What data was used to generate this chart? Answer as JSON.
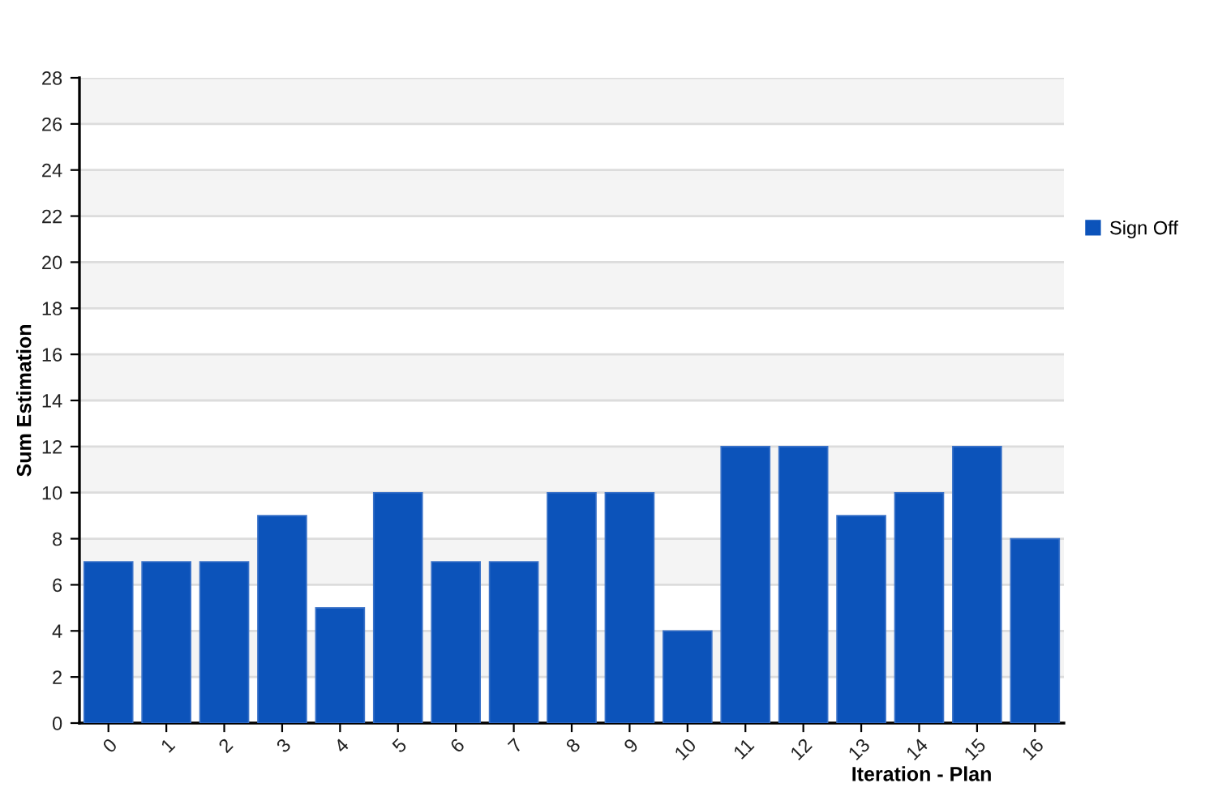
{
  "chart_data": {
    "type": "bar",
    "categories": [
      "0",
      "1",
      "2",
      "3",
      "4",
      "5",
      "6",
      "7",
      "8",
      "9",
      "10",
      "11",
      "12",
      "13",
      "14",
      "15",
      "16"
    ],
    "series": [
      {
        "name": "Sign Off",
        "color": "#0c53ba",
        "values": [
          7,
          7,
          7,
          9,
          5,
          10,
          7,
          7,
          10,
          10,
          4,
          12,
          12,
          9,
          10,
          12,
          8
        ]
      }
    ],
    "xlabel": "Iteration - Plan",
    "ylabel": "Sum Estimation",
    "ylim": [
      0,
      28
    ],
    "yticks": [
      0,
      2,
      4,
      6,
      8,
      10,
      12,
      14,
      16,
      18,
      20,
      22,
      24,
      26,
      28
    ],
    "grid": "y",
    "legend": "right"
  }
}
